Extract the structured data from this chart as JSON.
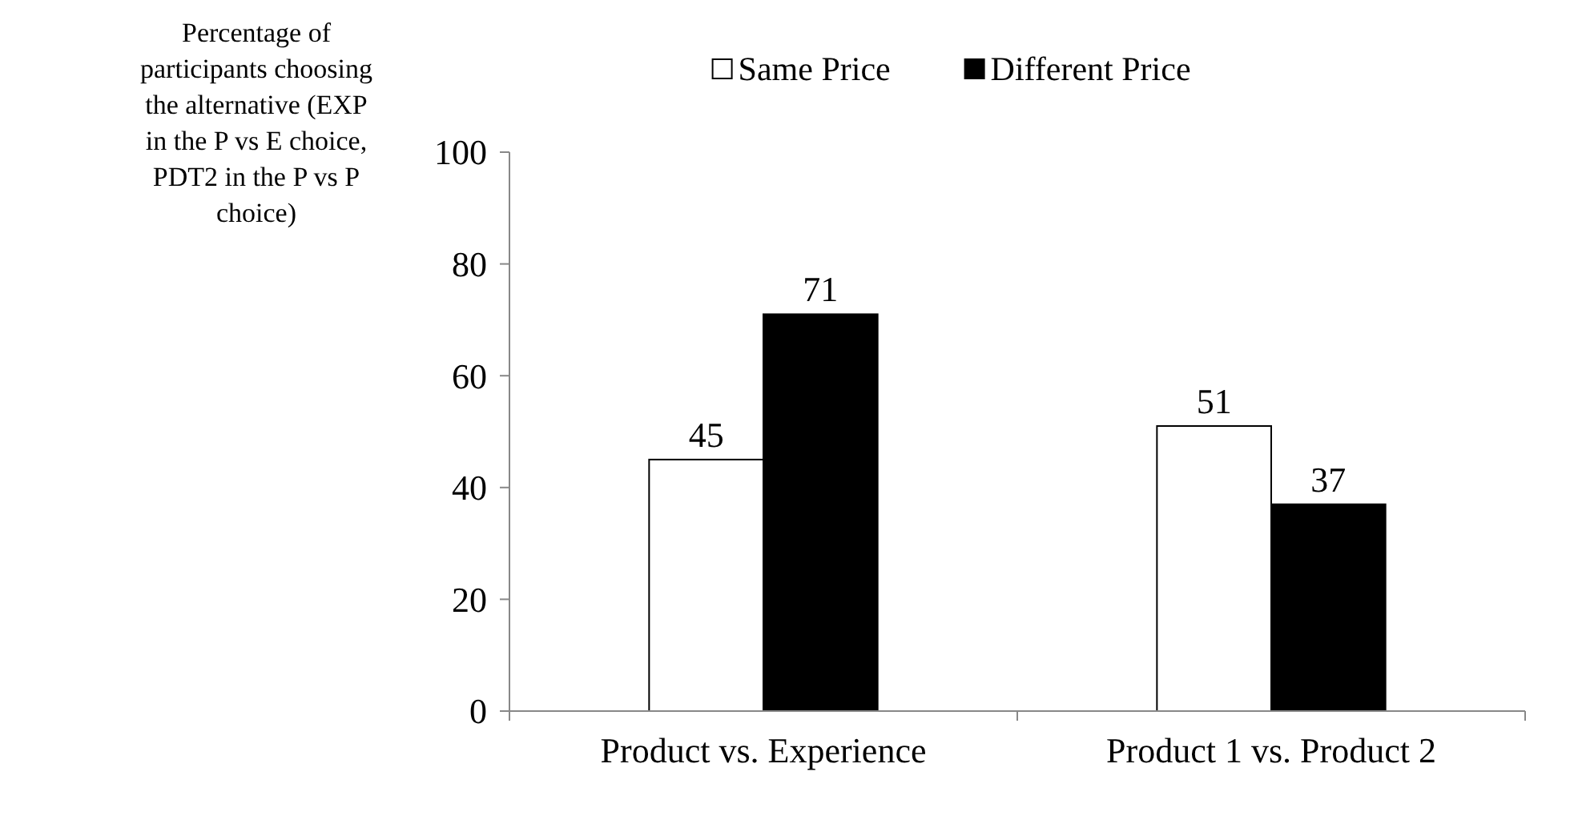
{
  "chart_data": {
    "type": "bar",
    "ylabel": "Percentage of participants choosing the alternative (EXP in the P vs E choice, PDT2 in the P vs P choice)",
    "categories": [
      "Product vs. Experience",
      "Product 1 vs. Product 2"
    ],
    "series": [
      {
        "name": "Same Price",
        "color": "#ffffff",
        "values": [
          45,
          51
        ]
      },
      {
        "name": "Different Price",
        "color": "#000000",
        "values": [
          71,
          37
        ]
      }
    ],
    "ylim": [
      0,
      100
    ],
    "yticks": [
      0,
      20,
      40,
      60,
      80,
      100
    ],
    "grid": false,
    "legend": "top",
    "data_labels": true
  }
}
